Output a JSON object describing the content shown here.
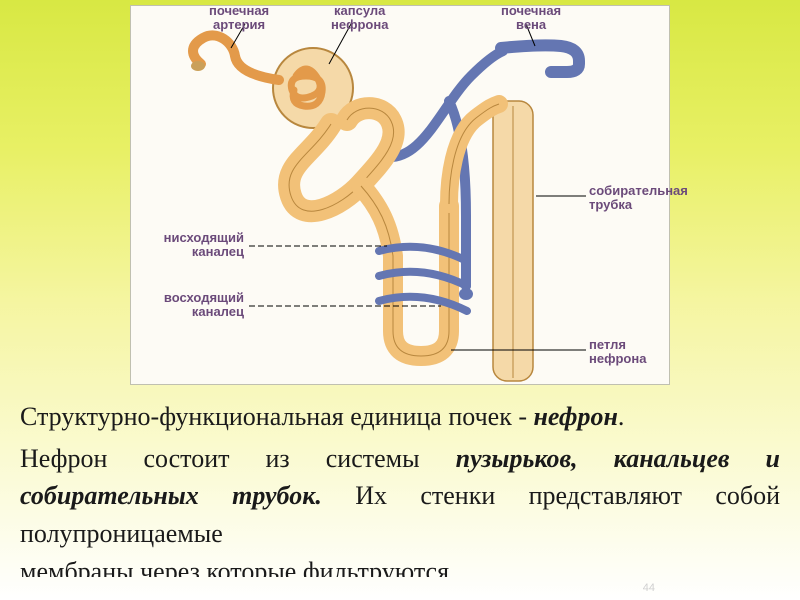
{
  "diagram": {
    "background": "#fdfbf5",
    "labels": {
      "renal_artery": "почечная\nартерия",
      "nephron_capsule": "капсула\nнефрона",
      "renal_vein": "почечная\nвена",
      "collecting_tube": "собирательная\nтрубка",
      "descending_tubule": "нисходящий\nканалец",
      "ascending_tubule": "восходящий\nканалец",
      "nephron_loop": "петля\nнефрона"
    },
    "label_color": "#6b4a7a",
    "label_fontsize": 13,
    "colors": {
      "tubule": "#f2c178",
      "tubule_stroke": "#b8873e",
      "glomerulus": "#e39a4a",
      "vein": "#6476b2",
      "vein_stroke": "#3a4878",
      "collecting": "#f5d9a8",
      "leader": "#000000"
    }
  },
  "text": {
    "line1_pre": "Структурно-функциональная единица почек -",
    "line1_em": "нефрон",
    "line2_pre": "Нефрон состоит из системы",
    "line2_em": "пузырьков, канальцев и собирательных трубок.",
    "line2_post": "Их стенки представляют собой полупроницаемые",
    "cutoff": "мембраны    через    которые    фильтруются"
  },
  "page_number": "44"
}
